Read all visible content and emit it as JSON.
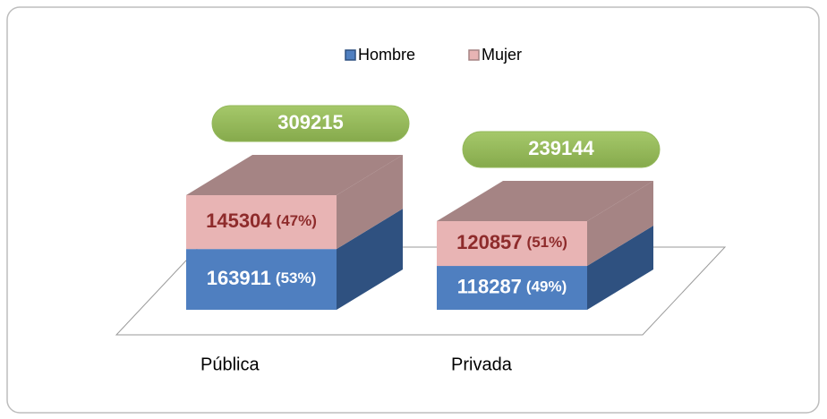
{
  "chart_data": {
    "type": "bar",
    "stacked": true,
    "categories": [
      "Pública",
      "Privada"
    ],
    "series": [
      {
        "name": "Hombre",
        "color": "#4f7fc0",
        "side_color": "#2f5180",
        "label_color": "#ffffff",
        "values": [
          163911,
          118287
        ],
        "percent_labels": [
          "(53%)",
          "(49%)"
        ]
      },
      {
        "name": "Mujer",
        "color": "#e8b4b4",
        "side_color": "#a58484",
        "label_color": "#8e2b2b",
        "values": [
          145304,
          120857
        ],
        "percent_labels": [
          "(47%)",
          "(51%)"
        ]
      }
    ],
    "totals": [
      309215,
      239144
    ],
    "total_color": "#93b85a"
  }
}
